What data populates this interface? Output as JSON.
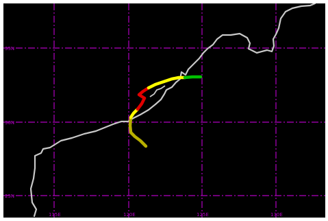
{
  "map": {
    "background": "#000000",
    "grid_color": "#b000c0",
    "coastline_color": "#c8c8c8",
    "grid_lines": "dash-dot",
    "lat_labels": [
      "35N",
      "30N",
      "25N"
    ],
    "lon_labels": [
      "115E",
      "120E",
      "125E",
      "130E"
    ]
  },
  "track": {
    "segments": [
      {
        "color": "#b8b000",
        "category": "weak"
      },
      {
        "color": "#ffff00",
        "category": "tropical-storm"
      },
      {
        "color": "#e00000",
        "category": "typhoon"
      },
      {
        "color": "#ffff00",
        "category": "tropical-storm"
      },
      {
        "color": "#00c000",
        "category": "extratropical"
      }
    ]
  }
}
